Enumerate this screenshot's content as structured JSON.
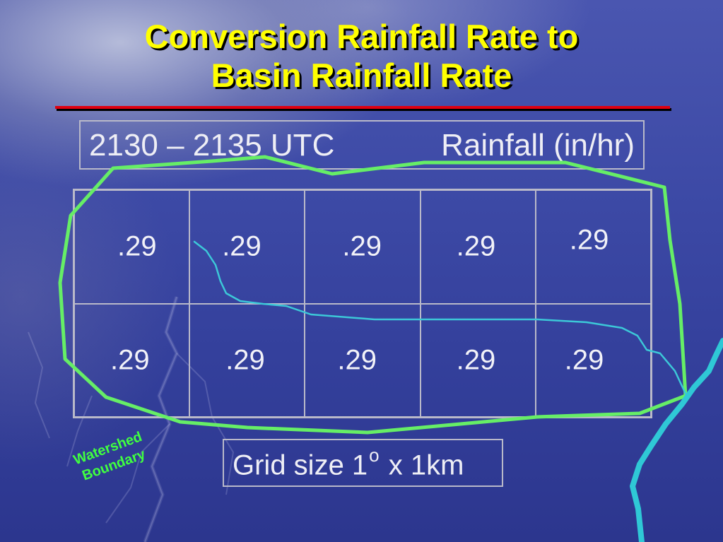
{
  "title": {
    "line1": "Conversion Rainfall Rate to",
    "line2": "Basin Rainfall Rate"
  },
  "header": {
    "time_range": "2130 – 2135 UTC",
    "label": "Rainfall (in/hr)"
  },
  "grid": {
    "rows": [
      [
        ".29",
        ".29",
        ".29",
        ".29",
        ".29"
      ],
      [
        ".29",
        ".29",
        ".29",
        ".29",
        ".29"
      ]
    ]
  },
  "grid_size": {
    "prefix": "Grid size 1",
    "superscript": "o",
    "suffix": " x 1km"
  },
  "annotation": {
    "line1": "Watershed",
    "line2": "Boundary"
  },
  "colors": {
    "title": "#ffff00",
    "title_rule": "#e00010",
    "watershed_boundary": "#66ee66",
    "stream": "#3cc8d8"
  }
}
